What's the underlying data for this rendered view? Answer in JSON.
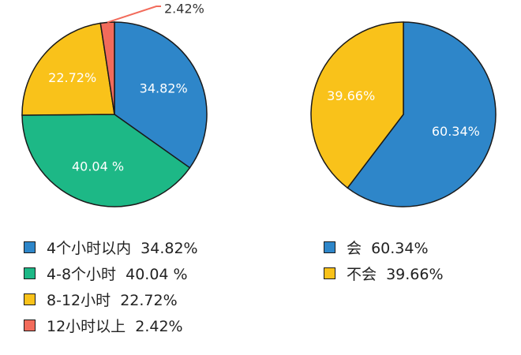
{
  "chart_data": [
    {
      "type": "pie",
      "slices": [
        {
          "label": "4个小时以内",
          "value": 34.82,
          "display": "34.82%",
          "legend": "4个小时以内  34.82%",
          "color": "#2e86c9"
        },
        {
          "label": "4-8个小时",
          "value": 40.04,
          "display": "40.04 %",
          "legend": "4-8个小时  40.04 %",
          "color": "#1db886"
        },
        {
          "label": "8-12小时",
          "value": 22.72,
          "display": "22.72%",
          "legend": "8-12小时  22.72%",
          "color": "#f9c21a"
        },
        {
          "label": "12小时以上",
          "value": 2.42,
          "display": "2.42%",
          "legend": "12小时以上  2.42%",
          "color": "#f26b5b"
        }
      ]
    },
    {
      "type": "pie",
      "slices": [
        {
          "label": "会",
          "value": 60.34,
          "display": "60.34%",
          "legend": "会  60.34%",
          "color": "#2e86c9"
        },
        {
          "label": "不会",
          "value": 39.66,
          "display": "39.66%",
          "legend": "不会  39.66%",
          "color": "#f9c21a"
        }
      ]
    }
  ]
}
